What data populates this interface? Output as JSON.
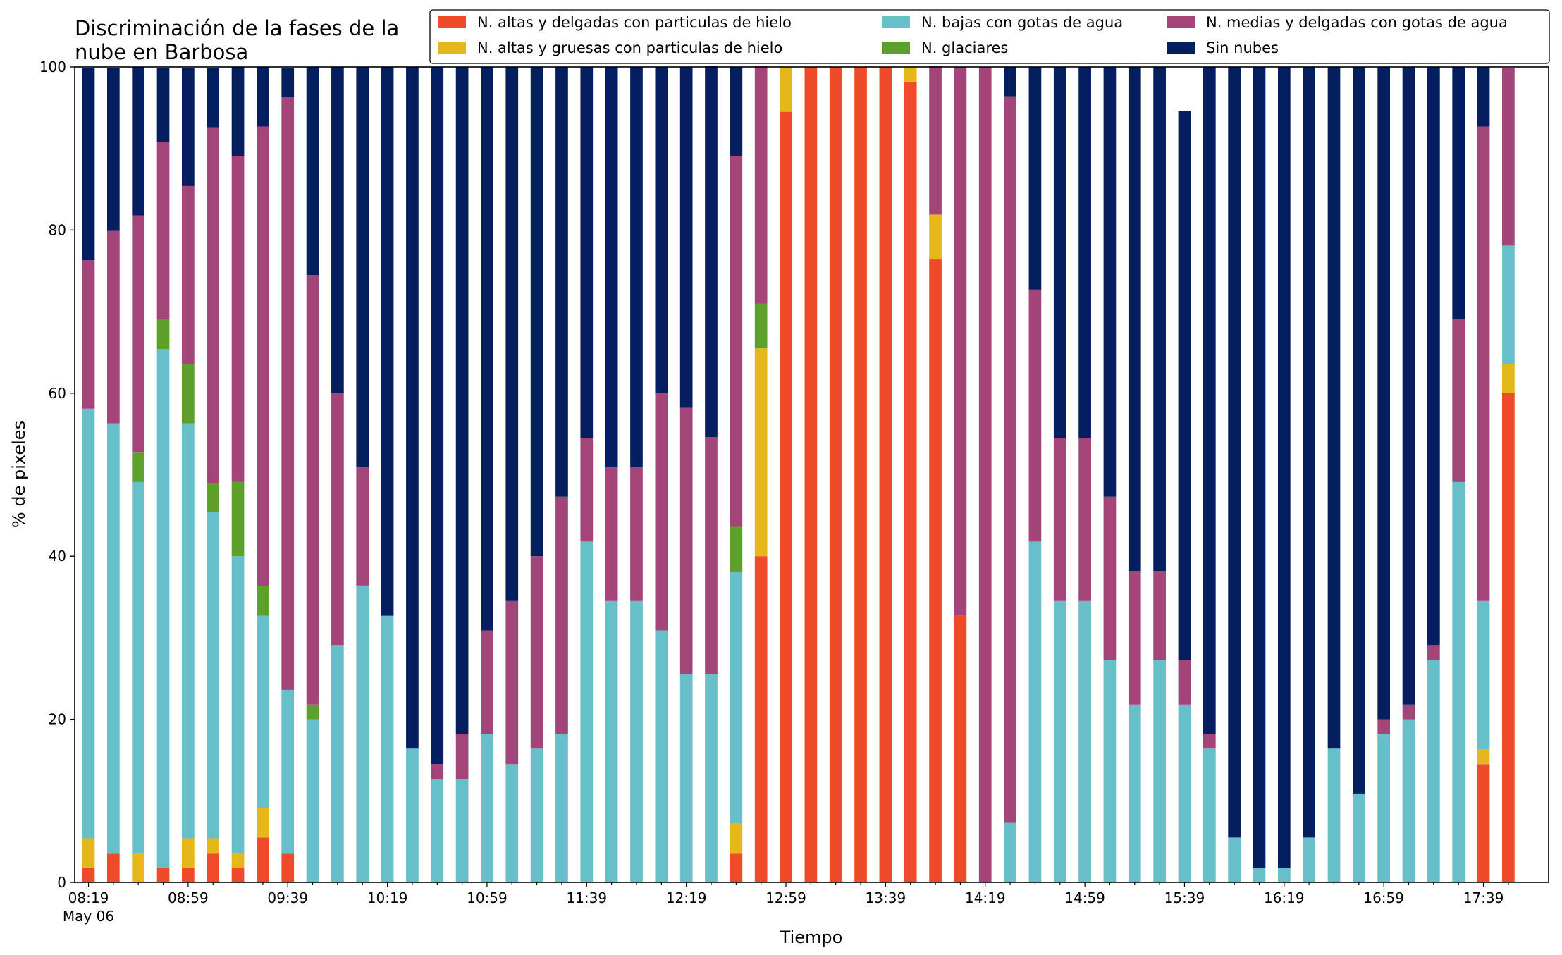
{
  "chart_data": {
    "type": "bar",
    "stacked": true,
    "title": "Discriminación de la fases de la\nnube en Barbosa",
    "xlabel": "Tiempo",
    "ylabel": "% de pixeles",
    "ylim": [
      0,
      100
    ],
    "yticks": [
      0,
      20,
      40,
      60,
      80,
      100
    ],
    "grid": false,
    "legend_position": "top-right",
    "legend_columns": 3,
    "date_label": "May 06",
    "times": [
      "08:19",
      "08:29",
      "08:39",
      "08:49",
      "08:59",
      "09:09",
      "09:19",
      "09:29",
      "09:39",
      "09:49",
      "09:59",
      "10:09",
      "10:19",
      "10:29",
      "10:39",
      "10:49",
      "10:59",
      "11:09",
      "11:19",
      "11:29",
      "11:39",
      "11:49",
      "11:59",
      "12:09",
      "12:19",
      "12:29",
      "12:39",
      "12:49",
      "12:59",
      "13:09",
      "13:19",
      "13:29",
      "13:39",
      "13:49",
      "13:59",
      "14:09",
      "14:19",
      "14:29",
      "14:39",
      "14:49",
      "14:59",
      "15:09",
      "15:19",
      "15:29",
      "15:39",
      "15:49",
      "15:59",
      "16:09",
      "16:19",
      "16:29",
      "16:39",
      "16:49",
      "16:59",
      "17:09",
      "17:19",
      "17:29",
      "17:39",
      "17:49"
    ],
    "series": [
      {
        "name": "N. altas y delgadas con particulas de hielo",
        "color": "#ef4a2a",
        "values": [
          1.8,
          3.6,
          0,
          1.8,
          1.8,
          3.6,
          1.8,
          5.5,
          3.6,
          0,
          0,
          0,
          0,
          0,
          0,
          0,
          0,
          0,
          0,
          0,
          0,
          0,
          0,
          0,
          0,
          0,
          3.6,
          40,
          94.5,
          100,
          100,
          100,
          100,
          98.2,
          76.4,
          32.7,
          0,
          0,
          0,
          0,
          0,
          0,
          0,
          0,
          0,
          0,
          0,
          0,
          0,
          0,
          0,
          0,
          0,
          0,
          0,
          0,
          14.5,
          60
        ]
      },
      {
        "name": "N. altas y gruesas con particulas de hielo",
        "color": "#e6b71a",
        "values": [
          3.6,
          0,
          3.6,
          0,
          3.6,
          1.8,
          1.8,
          3.6,
          0,
          0,
          0,
          0,
          0,
          0,
          0,
          0,
          0,
          0,
          0,
          0,
          0,
          0,
          0,
          0,
          0,
          0,
          3.6,
          25.5,
          5.5,
          0,
          0,
          0,
          0,
          1.8,
          5.5,
          0,
          0,
          0,
          0,
          0,
          0,
          0,
          0,
          0,
          0,
          0,
          0,
          0,
          0,
          0,
          0,
          0,
          0,
          0,
          0,
          0,
          1.8,
          3.6
        ]
      },
      {
        "name": "N. bajas con gotas de agua",
        "color": "#67bfca",
        "values": [
          52.7,
          52.7,
          45.5,
          63.6,
          50.9,
          40,
          36.4,
          23.6,
          20,
          20,
          29.1,
          36.4,
          32.7,
          16.4,
          12.7,
          12.7,
          18.2,
          14.5,
          16.4,
          18.2,
          41.8,
          34.5,
          34.5,
          30.9,
          25.5,
          25.5,
          30.9,
          0,
          0,
          0,
          0,
          0,
          0,
          0,
          0,
          0,
          0,
          7.3,
          41.8,
          34.5,
          34.5,
          27.3,
          21.8,
          27.3,
          21.8,
          16.4,
          5.5,
          1.8,
          1.8,
          5.5,
          16.4,
          10.9,
          18.2,
          20,
          27.3,
          49.1,
          18.2,
          14.5
        ]
      },
      {
        "name": "N. glaciares",
        "color": "#5ea02c",
        "values": [
          0,
          0,
          3.6,
          3.6,
          7.3,
          3.6,
          9.1,
          3.6,
          0,
          1.8,
          0,
          0,
          0,
          0,
          0,
          0,
          0,
          0,
          0,
          0,
          0,
          0,
          0,
          0,
          0,
          0,
          5.5,
          5.5,
          0,
          0,
          0,
          0,
          0,
          0,
          0,
          0,
          0,
          0,
          0,
          0,
          0,
          0,
          0,
          0,
          0,
          0,
          0,
          0,
          0,
          0,
          0,
          0,
          0,
          0,
          0,
          0,
          0,
          0
        ]
      },
      {
        "name": "N. medias y delgadas con gotas de agua",
        "color": "#a4457a",
        "values": [
          18.2,
          23.6,
          29.1,
          21.8,
          21.8,
          43.6,
          40,
          56.4,
          72.7,
          52.7,
          30.9,
          14.5,
          0,
          0,
          1.8,
          5.5,
          12.7,
          20,
          23.6,
          29.1,
          12.7,
          16.4,
          16.4,
          29.1,
          32.7,
          29.1,
          45.5,
          29.1,
          0,
          0,
          0,
          0,
          0,
          0,
          18.2,
          67.3,
          100,
          89.1,
          30.9,
          20,
          20,
          20,
          16.4,
          10.9,
          5.5,
          1.8,
          0,
          0,
          0,
          0,
          0,
          0,
          1.8,
          1.8,
          1.8,
          20,
          58.2,
          21.8
        ]
      },
      {
        "name": "Sin nubes",
        "color": "#051e60",
        "values": [
          23.6,
          20,
          18.2,
          9.1,
          14.5,
          7.3,
          10.9,
          7.3,
          3.6,
          25.5,
          40,
          49.1,
          67.3,
          83.6,
          85.5,
          81.8,
          69.1,
          65.5,
          60,
          52.7,
          45.5,
          49.1,
          49.1,
          40,
          41.8,
          45.5,
          10.9,
          0,
          0,
          0,
          0,
          0,
          0,
          0,
          0,
          0,
          0,
          3.6,
          27.3,
          45.5,
          45.5,
          52.7,
          61.8,
          61.8,
          67.3,
          81.8,
          94.5,
          98.2,
          98.2,
          94.5,
          83.6,
          89.1,
          80,
          78.2,
          70.9,
          30.9,
          7.3,
          0
        ]
      }
    ]
  }
}
